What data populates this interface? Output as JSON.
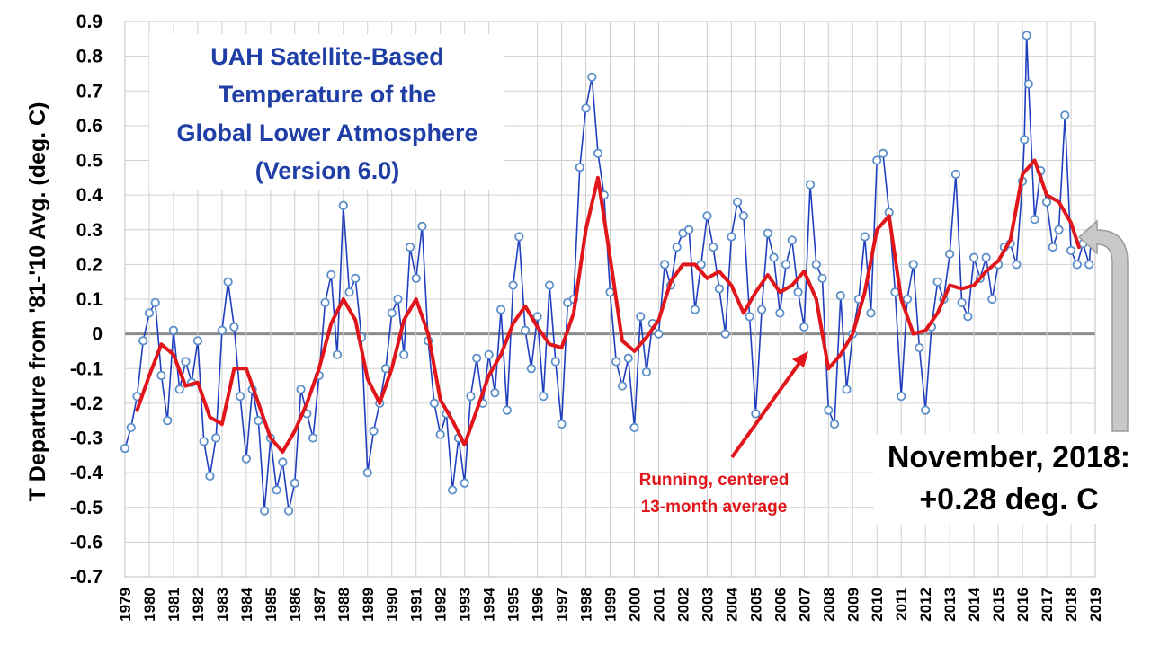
{
  "chart_data": {
    "type": "line",
    "title_lines": [
      "UAH Satellite-Based",
      "Temperature of the",
      "Global Lower Atmosphere",
      "(Version 6.0)"
    ],
    "ylabel": "T Departure from '81-'10 Avg. (deg. C)",
    "xlabel": "",
    "ylim": [
      -0.7,
      0.9
    ],
    "yticks": [
      "0.9",
      "0.8",
      "0.7",
      "0.6",
      "0.5",
      "0.4",
      "0.3",
      "0.2",
      "0.1",
      "0",
      "-0.1",
      "-0.2",
      "-0.3",
      "-0.4",
      "-0.5",
      "-0.6",
      "-0.7"
    ],
    "yticks_values": [
      0.9,
      0.8,
      0.7,
      0.6,
      0.5,
      0.4,
      0.3,
      0.2,
      0.1,
      0,
      -0.1,
      -0.2,
      -0.3,
      -0.4,
      -0.5,
      -0.6,
      -0.7
    ],
    "xticks": [
      "1979",
      "1980",
      "1981",
      "1982",
      "1983",
      "1984",
      "1985",
      "1986",
      "1987",
      "1988",
      "1989",
      "1990",
      "1991",
      "1992",
      "1993",
      "1994",
      "1995",
      "1996",
      "1997",
      "1998",
      "1999",
      "2000",
      "2001",
      "2002",
      "2003",
      "2004",
      "2005",
      "2006",
      "2007",
      "2008",
      "2009",
      "2010",
      "2011",
      "2012",
      "2013",
      "2014",
      "2015",
      "2016",
      "2017",
      "2018",
      "2019"
    ],
    "xlim": [
      1979.0,
      2019.0
    ],
    "grid": true,
    "colors": {
      "monthly": "#1f3fbf",
      "marker": "#5b8fc9",
      "average": "#e0161b",
      "title": "#1f3fa6",
      "zero": "#8c8c8c",
      "grid": "#d0d0d0",
      "callout_arrow": "#c8c8c8"
    },
    "series": [
      {
        "name": "monthly",
        "x": [
          1979.0,
          1979.25,
          1979.5,
          1979.75,
          1980.0,
          1980.25,
          1980.5,
          1980.75,
          1981.0,
          1981.25,
          1981.5,
          1981.75,
          1982.0,
          1982.25,
          1982.5,
          1982.75,
          1983.0,
          1983.25,
          1983.5,
          1983.75,
          1984.0,
          1984.25,
          1984.5,
          1984.75,
          1985.0,
          1985.25,
          1985.5,
          1985.75,
          1986.0,
          1986.25,
          1986.5,
          1986.75,
          1987.0,
          1987.25,
          1987.5,
          1987.75,
          1988.0,
          1988.25,
          1988.5,
          1988.75,
          1989.0,
          1989.25,
          1989.5,
          1989.75,
          1990.0,
          1990.25,
          1990.5,
          1990.75,
          1991.0,
          1991.25,
          1991.5,
          1991.75,
          1992.0,
          1992.25,
          1992.5,
          1992.75,
          1993.0,
          1993.25,
          1993.5,
          1993.75,
          1994.0,
          1994.25,
          1994.5,
          1994.75,
          1995.0,
          1995.25,
          1995.5,
          1995.75,
          1996.0,
          1996.25,
          1996.5,
          1996.75,
          1997.0,
          1997.25,
          1997.5,
          1997.75,
          1998.0,
          1998.25,
          1998.5,
          1998.75,
          1999.0,
          1999.25,
          1999.5,
          1999.75,
          2000.0,
          2000.25,
          2000.5,
          2000.75,
          2001.0,
          2001.25,
          2001.5,
          2001.75,
          2002.0,
          2002.25,
          2002.5,
          2002.75,
          2003.0,
          2003.25,
          2003.5,
          2003.75,
          2004.0,
          2004.25,
          2004.5,
          2004.75,
          2005.0,
          2005.25,
          2005.5,
          2005.75,
          2006.0,
          2006.25,
          2006.5,
          2006.75,
          2007.0,
          2007.25,
          2007.5,
          2007.75,
          2008.0,
          2008.25,
          2008.5,
          2008.75,
          2009.0,
          2009.25,
          2009.5,
          2009.75,
          2010.0,
          2010.25,
          2010.5,
          2010.75,
          2011.0,
          2011.25,
          2011.5,
          2011.75,
          2012.0,
          2012.25,
          2012.5,
          2012.75,
          2013.0,
          2013.25,
          2013.5,
          2013.75,
          2014.0,
          2014.25,
          2014.5,
          2014.75,
          2015.0,
          2015.25,
          2015.5,
          2015.75,
          2016.0,
          2016.08,
          2016.17,
          2016.25,
          2016.5,
          2016.75,
          2017.0,
          2017.25,
          2017.5,
          2017.75,
          2018.0,
          2018.25,
          2018.5,
          2018.75,
          2018.83
        ],
        "values": [
          -0.33,
          -0.27,
          -0.18,
          -0.02,
          0.06,
          0.09,
          -0.12,
          -0.25,
          0.01,
          -0.16,
          -0.08,
          -0.14,
          -0.02,
          -0.31,
          -0.41,
          -0.3,
          0.01,
          0.15,
          0.02,
          -0.18,
          -0.36,
          -0.16,
          -0.25,
          -0.51,
          -0.3,
          -0.45,
          -0.37,
          -0.51,
          -0.43,
          -0.16,
          -0.23,
          -0.3,
          -0.12,
          0.09,
          0.17,
          -0.06,
          0.37,
          0.12,
          0.16,
          -0.01,
          -0.4,
          -0.28,
          -0.2,
          -0.1,
          0.06,
          0.1,
          -0.06,
          0.25,
          0.16,
          0.31,
          -0.02,
          -0.2,
          -0.29,
          -0.23,
          -0.45,
          -0.3,
          -0.43,
          -0.18,
          -0.07,
          -0.2,
          -0.06,
          -0.17,
          0.07,
          -0.22,
          0.14,
          0.28,
          0.01,
          -0.1,
          0.05,
          -0.18,
          0.14,
          -0.08,
          -0.26,
          0.09,
          0.1,
          0.48,
          0.65,
          0.74,
          0.52,
          0.4,
          0.12,
          -0.08,
          -0.15,
          -0.07,
          -0.27,
          0.05,
          -0.11,
          0.03,
          0.0,
          0.2,
          0.14,
          0.25,
          0.29,
          0.3,
          0.07,
          0.2,
          0.34,
          0.25,
          0.13,
          0.0,
          0.28,
          0.38,
          0.34,
          0.05,
          -0.23,
          0.07,
          0.29,
          0.22,
          0.06,
          0.2,
          0.27,
          0.12,
          0.02,
          0.43,
          0.2,
          0.16,
          -0.22,
          -0.26,
          0.11,
          -0.16,
          0.0,
          0.1,
          0.28,
          0.06,
          0.5,
          0.52,
          0.35,
          0.12,
          -0.18,
          0.1,
          0.2,
          -0.04,
          -0.22,
          0.02,
          0.15,
          0.1,
          0.23,
          0.46,
          0.09,
          0.05,
          0.22,
          0.16,
          0.22,
          0.1,
          0.2,
          0.25,
          0.26,
          0.2,
          0.44,
          0.56,
          0.86,
          0.72,
          0.33,
          0.47,
          0.38,
          0.25,
          0.3,
          0.63,
          0.24,
          0.2,
          0.26,
          0.2,
          0.28
        ]
      },
      {
        "name": "average",
        "x": [
          1979.5,
          1980.0,
          1980.5,
          1981.0,
          1981.5,
          1982.0,
          1982.5,
          1983.0,
          1983.5,
          1984.0,
          1984.5,
          1985.0,
          1985.5,
          1986.0,
          1986.5,
          1987.0,
          1987.5,
          1988.0,
          1988.5,
          1989.0,
          1989.5,
          1990.0,
          1990.5,
          1991.0,
          1991.5,
          1992.0,
          1992.5,
          1993.0,
          1993.5,
          1994.0,
          1994.5,
          1995.0,
          1995.5,
          1996.0,
          1996.5,
          1997.0,
          1997.5,
          1998.0,
          1998.5,
          1999.0,
          1999.5,
          2000.0,
          2000.5,
          2001.0,
          2001.5,
          2002.0,
          2002.5,
          2003.0,
          2003.5,
          2004.0,
          2004.5,
          2005.0,
          2005.5,
          2006.0,
          2006.5,
          2007.0,
          2007.5,
          2008.0,
          2008.5,
          2009.0,
          2009.5,
          2010.0,
          2010.5,
          2011.0,
          2011.5,
          2012.0,
          2012.5,
          2013.0,
          2013.5,
          2014.0,
          2014.5,
          2015.0,
          2015.5,
          2016.0,
          2016.5,
          2017.0,
          2017.5,
          2018.0,
          2018.33
        ],
        "values": [
          -0.22,
          -0.12,
          -0.03,
          -0.06,
          -0.15,
          -0.14,
          -0.24,
          -0.26,
          -0.1,
          -0.1,
          -0.2,
          -0.3,
          -0.34,
          -0.28,
          -0.2,
          -0.1,
          0.03,
          0.1,
          0.04,
          -0.13,
          -0.2,
          -0.1,
          0.04,
          0.1,
          0.0,
          -0.19,
          -0.25,
          -0.32,
          -0.22,
          -0.12,
          -0.06,
          0.03,
          0.08,
          0.02,
          -0.03,
          -0.04,
          0.06,
          0.3,
          0.45,
          0.22,
          -0.02,
          -0.05,
          -0.01,
          0.04,
          0.15,
          0.2,
          0.2,
          0.16,
          0.18,
          0.14,
          0.06,
          0.12,
          0.17,
          0.12,
          0.14,
          0.18,
          0.1,
          -0.1,
          -0.06,
          0.0,
          0.12,
          0.3,
          0.34,
          0.1,
          0.0,
          0.01,
          0.06,
          0.14,
          0.13,
          0.14,
          0.18,
          0.21,
          0.27,
          0.46,
          0.5,
          0.4,
          0.38,
          0.32,
          0.25
        ]
      }
    ],
    "annotations": {
      "average_label_lines": [
        "Running, centered",
        "13-month average"
      ],
      "latest_lines": [
        "November, 2018:",
        "+0.28 deg. C"
      ]
    }
  }
}
